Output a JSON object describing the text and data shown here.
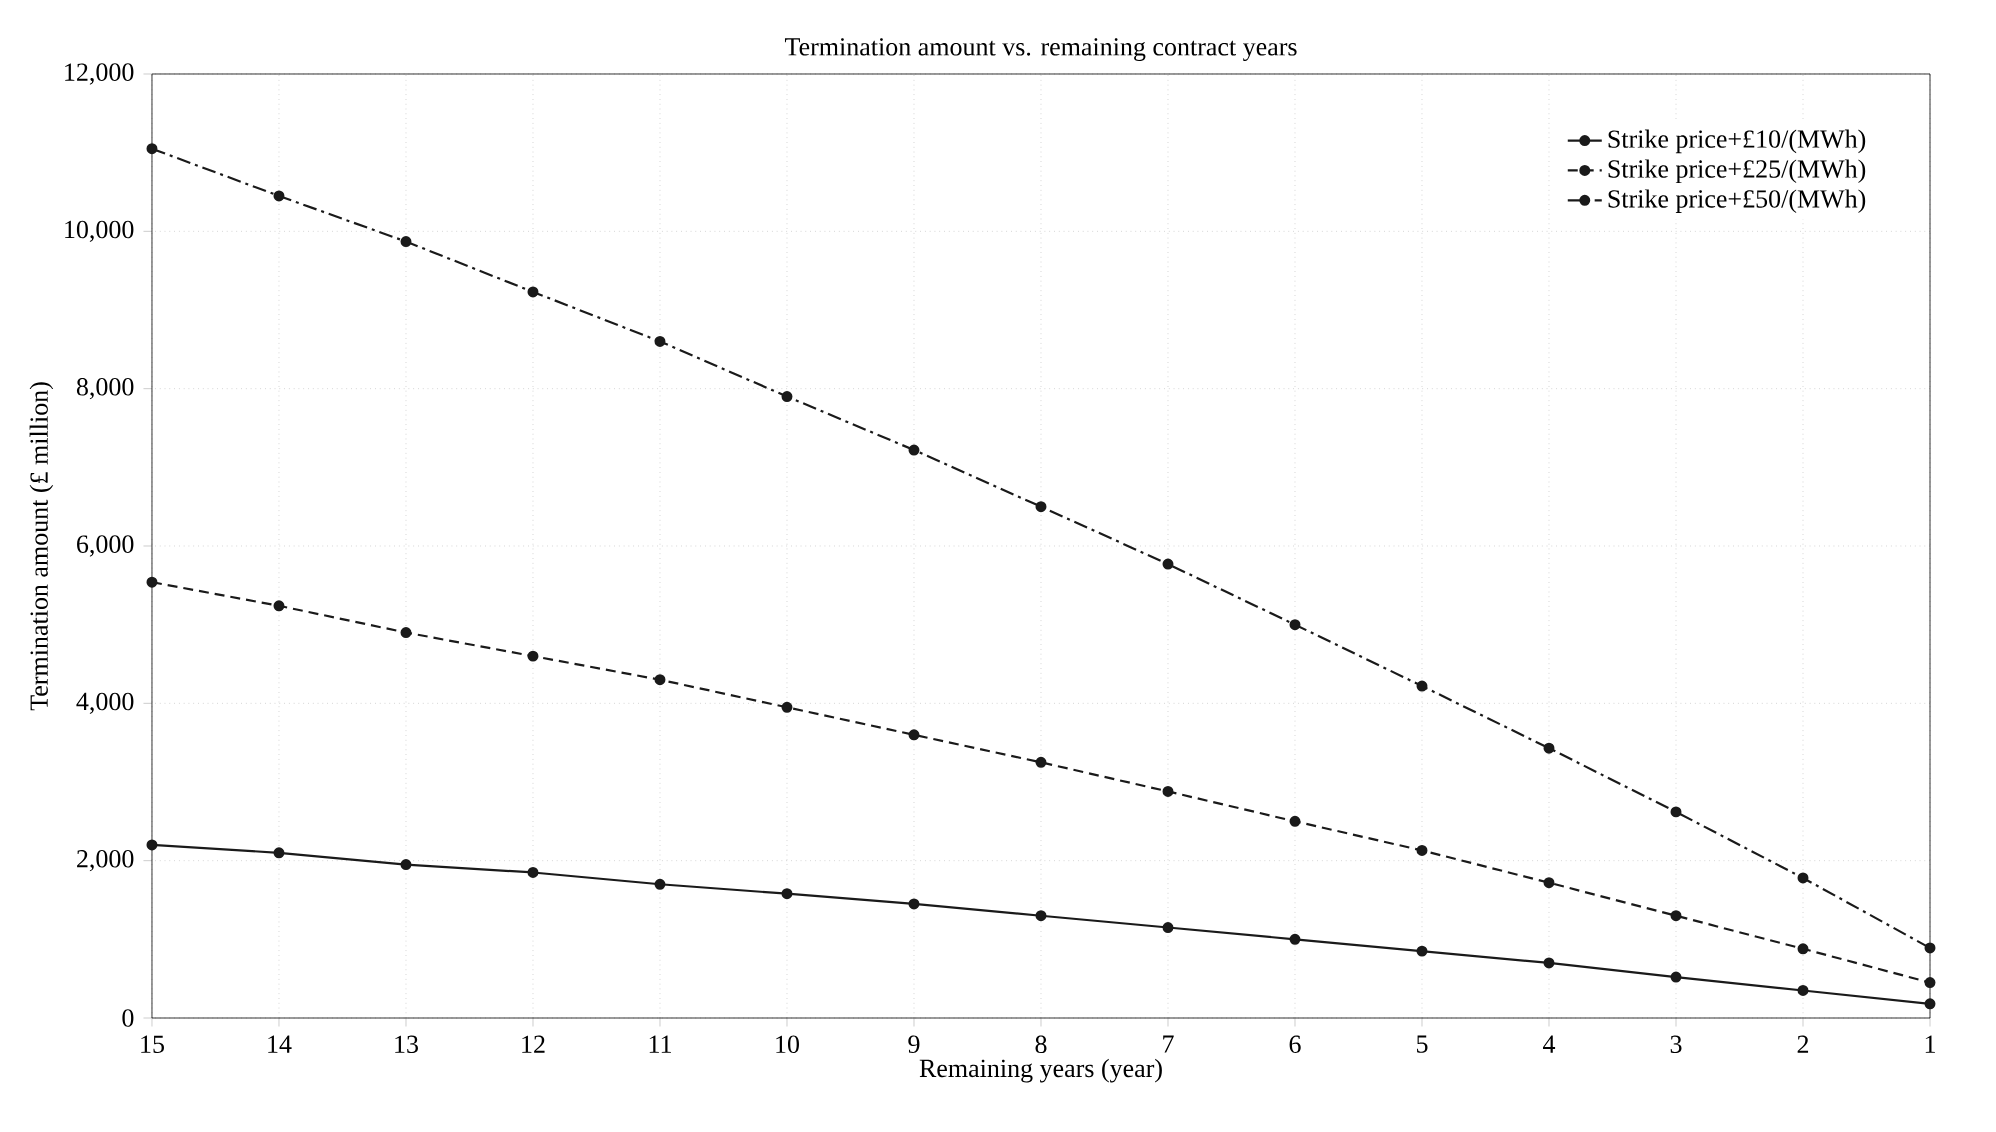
{
  "chart_data": {
    "type": "line",
    "title": "Termination amount vs. remaining contract years",
    "xlabel": "Remaining years (year)",
    "ylabel": "Termination amount (£ million)",
    "x": [
      15,
      14,
      13,
      12,
      11,
      10,
      9,
      8,
      7,
      6,
      5,
      4,
      3,
      2,
      1
    ],
    "xlim": [
      15,
      1
    ],
    "xticks": [
      15,
      14,
      13,
      12,
      11,
      10,
      9,
      8,
      7,
      6,
      5,
      4,
      3,
      2,
      1
    ],
    "ylim": [
      0,
      12000
    ],
    "yticks": [
      0,
      {
        "value": 2000,
        "label": "2,000"
      },
      {
        "value": 4000,
        "label": "4,000"
      },
      {
        "value": 6000,
        "label": "6,000"
      },
      {
        "value": 8000,
        "label": "8,000"
      },
      {
        "value": 10000,
        "label": "10,000"
      },
      {
        "value": 12000,
        "label": "12,000"
      }
    ],
    "grid": true,
    "legend": "top right",
    "marker": "circle",
    "series": [
      {
        "name": "Strike price+£10/(MWh)",
        "color": "#1a1a1a",
        "line_style": "solid",
        "values": [
          2200,
          2100,
          1950,
          1850,
          1700,
          1580,
          1450,
          1300,
          1150,
          1000,
          850,
          700,
          520,
          350,
          180
        ]
      },
      {
        "name": "Strike price+£25/(MWh)",
        "color": "#1a1a1a",
        "line_style": "dashed",
        "values": [
          5540,
          5240,
          4900,
          4600,
          4300,
          3950,
          3600,
          3250,
          2880,
          2500,
          2130,
          1720,
          1300,
          880,
          450
        ]
      },
      {
        "name": "Strike price+£50/(MWh)",
        "color": "#1a1a1a",
        "line_style": "dashdot",
        "values": [
          11050,
          10450,
          9870,
          9230,
          8600,
          7900,
          7220,
          6500,
          5770,
          5000,
          4220,
          3430,
          2620,
          1780,
          890
        ]
      }
    ]
  }
}
